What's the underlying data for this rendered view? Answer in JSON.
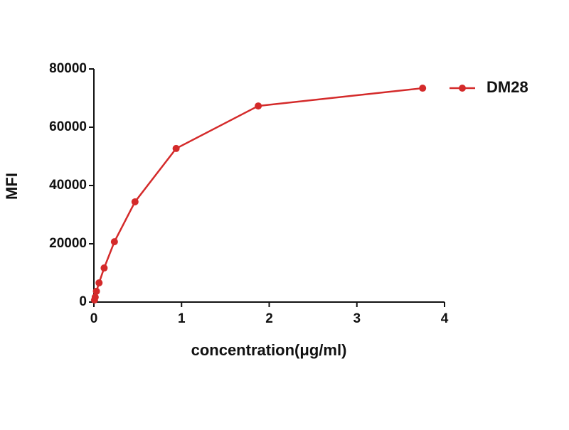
{
  "chart_data": {
    "type": "line",
    "xlabel": "concentration(μg/ml)",
    "ylabel": "MFI",
    "x": [
      0.007,
      0.015,
      0.029,
      0.059,
      0.117,
      0.234,
      0.469,
      0.938,
      1.875,
      3.75
    ],
    "series": [
      {
        "name": "DM28",
        "color": "#d42a2a",
        "values": [
          700,
          1700,
          3700,
          6600,
          11700,
          20700,
          34400,
          52700,
          67300,
          73400
        ]
      }
    ],
    "xlim": [
      0,
      4
    ],
    "xticks": [
      0,
      1,
      2,
      3,
      4
    ],
    "ylim": [
      0,
      80000
    ],
    "yticks": [
      0,
      20000,
      40000,
      60000,
      80000
    ],
    "legend": "right"
  }
}
